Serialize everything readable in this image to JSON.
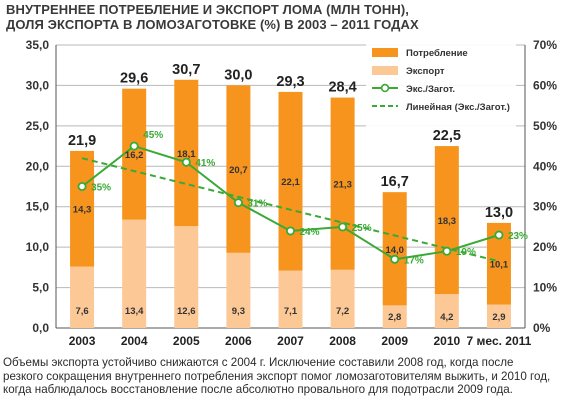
{
  "title": {
    "line1": "ВНУТРЕННЕЕ ПОТРЕБЛЕНИЕ И ЭКСПОРТ ЛОМА (МЛН ТОНН),",
    "line2": "ДОЛЯ ЭКСПОРТА В ЛОМОЗАГОТОВКЕ (%) В 2003 – 2011 ГОДАХ"
  },
  "caption": {
    "line1": "Объемы экспорта устойчиво снижаются с 2004 г. Исключение составили 2008 год, когда после",
    "line2": "резкого сокращения внутреннего потребления экспорт помог ломозаготовителям выжить, и 2010 год,",
    "line3": "когда наблюдалось восстановление после абсолютно провального для подотрасли 2009 года."
  },
  "chart_data": {
    "type": "bar",
    "stacked": true,
    "categories": [
      "2003",
      "2004",
      "2005",
      "2006",
      "2007",
      "2008",
      "2009",
      "2010",
      "7 мес. 2011"
    ],
    "series": [
      {
        "name": "Экспорт",
        "values": [
          7.6,
          13.4,
          12.6,
          9.3,
          7.1,
          7.2,
          2.8,
          4.2,
          2.9
        ],
        "color": "#fcc896"
      },
      {
        "name": "Потребление",
        "values": [
          14.3,
          16.2,
          18.1,
          20.7,
          22.1,
          21.3,
          14.0,
          18.3,
          10.1
        ],
        "color": "#f7941d"
      }
    ],
    "totals": [
      "21,9",
      "29,6",
      "30,7",
      "30,0",
      "29,3",
      "28,4",
      "16,7",
      "22,5",
      "13,0"
    ],
    "export_labels": [
      "7,6",
      "13,4",
      "12,6",
      "9,3",
      "7,1",
      "7,2",
      "2,8",
      "4,2",
      "2,9"
    ],
    "consumption_labels": [
      "14,3",
      "16,2",
      "18,1",
      "20,7",
      "22,1",
      "21,3",
      "14,0",
      "18,3",
      "10,1"
    ],
    "line_series": {
      "name": "Экс./Загот.",
      "values": [
        35,
        45,
        41,
        31,
        24,
        25,
        17,
        19,
        23
      ],
      "labels": [
        "35%",
        "45%",
        "41%",
        "31%",
        "24%",
        "25%",
        "17%",
        "19%",
        "23%"
      ],
      "color": "#3aa935"
    },
    "trend": {
      "name": "Линейная (Экс./Загот.)",
      "start": 42,
      "end": 16.5,
      "color": "#3aa935"
    },
    "y_left": {
      "min": 0,
      "max": 35,
      "ticks": [
        "0,0",
        "5,0",
        "10,0",
        "15,0",
        "20,0",
        "25,0",
        "30,0",
        "35,0"
      ]
    },
    "y_right": {
      "min": 0,
      "max": 70,
      "ticks": [
        "0%",
        "10%",
        "20%",
        "30%",
        "40%",
        "50%",
        "60%",
        "70%"
      ]
    },
    "grid": true,
    "legend_position": "top-right"
  }
}
